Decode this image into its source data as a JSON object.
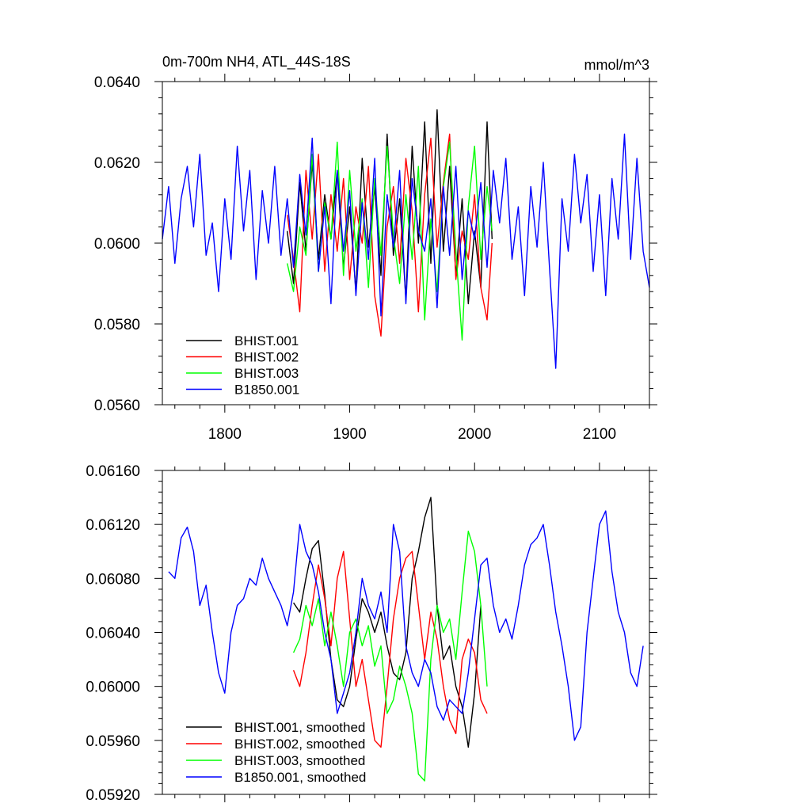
{
  "chart_data": [
    {
      "type": "line",
      "title": "0m-700m NH4, ATL_44S-18S",
      "units": "mmol/m^3",
      "xlim": [
        1750,
        2140
      ],
      "ylim": [
        0.056,
        0.064
      ],
      "x_ticks": [
        1800,
        1900,
        2000,
        2100
      ],
      "x_tick_labels": [
        "1800",
        "1900",
        "2000",
        "2100"
      ],
      "y_ticks": [
        0.056,
        0.058,
        0.06,
        0.062,
        0.064
      ],
      "y_tick_labels": [
        "0.0560",
        "0.0580",
        "0.0600",
        "0.0620",
        "0.0640"
      ],
      "legend_position": "bottom-left",
      "series": [
        {
          "name": "BHIST.001",
          "color": "#000000",
          "x": [
            1850,
            1855,
            1860,
            1865,
            1870,
            1875,
            1880,
            1885,
            1890,
            1895,
            1900,
            1905,
            1910,
            1915,
            1920,
            1925,
            1930,
            1935,
            1940,
            1945,
            1950,
            1955,
            1960,
            1965,
            1970,
            1975,
            1980,
            1985,
            1990,
            1995,
            2000,
            2005,
            2010,
            2014
          ],
          "y": [
            0.0603,
            0.059,
            0.0615,
            0.0598,
            0.062,
            0.0596,
            0.0612,
            0.0601,
            0.0618,
            0.0594,
            0.0609,
            0.0588,
            0.0621,
            0.0599,
            0.0614,
            0.0592,
            0.0627,
            0.0597,
            0.0611,
            0.0586,
            0.0624,
            0.06,
            0.063,
            0.0595,
            0.0633,
            0.0598,
            0.0619,
            0.0592,
            0.0611,
            0.0585,
            0.0603,
            0.0589,
            0.063,
            0.0601
          ]
        },
        {
          "name": "BHIST.002",
          "color": "#ff0000",
          "x": [
            1850,
            1855,
            1860,
            1865,
            1870,
            1875,
            1880,
            1885,
            1890,
            1895,
            1900,
            1905,
            1910,
            1915,
            1920,
            1925,
            1930,
            1935,
            1940,
            1945,
            1950,
            1955,
            1960,
            1965,
            1970,
            1975,
            1980,
            1985,
            1990,
            1995,
            2000,
            2005,
            2010,
            2014
          ],
          "y": [
            0.0607,
            0.0596,
            0.0583,
            0.0618,
            0.0601,
            0.0622,
            0.0593,
            0.0612,
            0.0598,
            0.0616,
            0.0591,
            0.0609,
            0.06,
            0.0619,
            0.0587,
            0.0577,
            0.0604,
            0.0614,
            0.0595,
            0.0621,
            0.0608,
            0.0583,
            0.0612,
            0.0626,
            0.0599,
            0.0615,
            0.0627,
            0.0591,
            0.0603,
            0.0596,
            0.0612,
            0.0589,
            0.0581,
            0.06
          ]
        },
        {
          "name": "BHIST.003",
          "color": "#00ff00",
          "x": [
            1850,
            1855,
            1860,
            1865,
            1870,
            1875,
            1880,
            1885,
            1890,
            1895,
            1900,
            1905,
            1910,
            1915,
            1920,
            1925,
            1930,
            1935,
            1940,
            1945,
            1950,
            1955,
            1960,
            1965,
            1970,
            1975,
            1980,
            1985,
            1990,
            1995,
            2000,
            2005,
            2010,
            2014
          ],
          "y": [
            0.0595,
            0.0588,
            0.0604,
            0.0597,
            0.0622,
            0.0593,
            0.061,
            0.0601,
            0.0625,
            0.0592,
            0.0618,
            0.0598,
            0.0611,
            0.0589,
            0.0616,
            0.0597,
            0.0624,
            0.0602,
            0.059,
            0.0612,
            0.0596,
            0.0619,
            0.0581,
            0.0606,
            0.0588,
            0.0614,
            0.0625,
            0.0598,
            0.0576,
            0.0609,
            0.0624,
            0.0596,
            0.0614,
            0.0603
          ]
        },
        {
          "name": "B1850.001",
          "color": "#0000ff",
          "x": [
            1750,
            1755,
            1760,
            1765,
            1770,
            1775,
            1780,
            1785,
            1790,
            1795,
            1800,
            1805,
            1810,
            1815,
            1820,
            1825,
            1830,
            1835,
            1840,
            1845,
            1850,
            1855,
            1860,
            1865,
            1870,
            1875,
            1880,
            1885,
            1890,
            1895,
            1900,
            1905,
            1910,
            1915,
            1920,
            1925,
            1930,
            1935,
            1940,
            1945,
            1950,
            1955,
            1960,
            1965,
            1970,
            1975,
            1980,
            1985,
            1990,
            1995,
            2000,
            2005,
            2010,
            2015,
            2020,
            2025,
            2030,
            2035,
            2040,
            2045,
            2050,
            2055,
            2060,
            2065,
            2070,
            2075,
            2080,
            2085,
            2090,
            2095,
            2100,
            2105,
            2110,
            2115,
            2120,
            2125,
            2130,
            2135,
            2140
          ],
          "y": [
            0.0601,
            0.0614,
            0.0595,
            0.0611,
            0.0619,
            0.0604,
            0.0622,
            0.0597,
            0.0605,
            0.0588,
            0.0611,
            0.0596,
            0.0624,
            0.0603,
            0.0618,
            0.0591,
            0.0613,
            0.06,
            0.0619,
            0.0597,
            0.0611,
            0.0594,
            0.0617,
            0.0602,
            0.0626,
            0.0593,
            0.0609,
            0.0585,
            0.0618,
            0.0598,
            0.0613,
            0.0587,
            0.061,
            0.0596,
            0.0621,
            0.0582,
            0.0612,
            0.0599,
            0.0618,
            0.0585,
            0.0616,
            0.0603,
            0.0598,
            0.0611,
            0.0584,
            0.0614,
            0.0597,
            0.0619,
            0.0591,
            0.0608,
            0.0601,
            0.0615,
            0.0594,
            0.0618,
            0.0605,
            0.0621,
            0.0596,
            0.0609,
            0.0587,
            0.0614,
            0.0599,
            0.062,
            0.0594,
            0.0569,
            0.0611,
            0.0598,
            0.0622,
            0.0605,
            0.0617,
            0.0593,
            0.0612,
            0.0587,
            0.0616,
            0.0601,
            0.0627,
            0.0596,
            0.0621,
            0.0598,
            0.0589
          ]
        }
      ]
    },
    {
      "type": "line",
      "xlim": [
        1750,
        2140
      ],
      "ylim": [
        0.0592,
        0.0616
      ],
      "x_ticks": [
        1800,
        1900,
        2000,
        2100
      ],
      "y_ticks": [
        0.0592,
        0.0596,
        0.06,
        0.0604,
        0.0608,
        0.0612,
        0.0616
      ],
      "y_tick_labels": [
        "0.05920",
        "0.05960",
        "0.06000",
        "0.06040",
        "0.06080",
        "0.06120",
        "0.06160"
      ],
      "legend_position": "bottom-left",
      "series": [
        {
          "name": "BHIST.001, smoothed",
          "color": "#000000",
          "x": [
            1855,
            1860,
            1865,
            1870,
            1875,
            1880,
            1885,
            1890,
            1895,
            1900,
            1905,
            1910,
            1915,
            1920,
            1925,
            1930,
            1935,
            1940,
            1945,
            1950,
            1955,
            1960,
            1965,
            1970,
            1975,
            1980,
            1985,
            1990,
            1995,
            2000,
            2005
          ],
          "y": [
            0.06062,
            0.06055,
            0.0608,
            0.06102,
            0.06108,
            0.06068,
            0.0602,
            0.0599,
            0.05985,
            0.06,
            0.06035,
            0.06065,
            0.06055,
            0.0604,
            0.06055,
            0.0603,
            0.0601,
            0.06005,
            0.06025,
            0.0608,
            0.061,
            0.06125,
            0.0614,
            0.0606,
            0.0602,
            0.0603,
            0.06,
            0.05985,
            0.05955,
            0.05995,
            0.0606
          ]
        },
        {
          "name": "BHIST.002, smoothed",
          "color": "#ff0000",
          "x": [
            1855,
            1860,
            1865,
            1870,
            1875,
            1880,
            1885,
            1890,
            1895,
            1900,
            1905,
            1910,
            1915,
            1920,
            1925,
            1930,
            1935,
            1940,
            1945,
            1950,
            1955,
            1960,
            1965,
            1970,
            1975,
            1980,
            1985,
            1990,
            1995,
            2000,
            2005,
            2010
          ],
          "y": [
            0.06012,
            0.06,
            0.06025,
            0.0606,
            0.0609,
            0.06065,
            0.0603,
            0.0608,
            0.061,
            0.0605,
            0.06,
            0.0602,
            0.0599,
            0.0596,
            0.05955,
            0.06,
            0.0605,
            0.0608,
            0.06095,
            0.061,
            0.0606,
            0.0602,
            0.06055,
            0.06035,
            0.06,
            0.05975,
            0.05965,
            0.0602,
            0.06035,
            0.06025,
            0.0599,
            0.0598
          ]
        },
        {
          "name": "BHIST.003, smoothed",
          "color": "#00ff00",
          "x": [
            1855,
            1860,
            1865,
            1870,
            1875,
            1880,
            1885,
            1890,
            1895,
            1900,
            1905,
            1910,
            1915,
            1920,
            1925,
            1930,
            1935,
            1940,
            1945,
            1950,
            1955,
            1960,
            1965,
            1970,
            1975,
            1980,
            1985,
            1990,
            1995,
            2000,
            2005,
            2010
          ],
          "y": [
            0.06025,
            0.06035,
            0.0606,
            0.06045,
            0.06065,
            0.0603,
            0.06055,
            0.0603,
            0.06,
            0.0604,
            0.0605,
            0.0603,
            0.06045,
            0.06015,
            0.0603,
            0.0598,
            0.0599,
            0.06015,
            0.06,
            0.0598,
            0.05935,
            0.0593,
            0.0602,
            0.0606,
            0.0604,
            0.0605,
            0.0602,
            0.0607,
            0.06115,
            0.061,
            0.0606,
            0.06
          ]
        },
        {
          "name": "B1850.001, smoothed",
          "color": "#0000ff",
          "x": [
            1755,
            1760,
            1765,
            1770,
            1775,
            1780,
            1785,
            1790,
            1795,
            1800,
            1805,
            1810,
            1815,
            1820,
            1825,
            1830,
            1835,
            1840,
            1845,
            1850,
            1855,
            1860,
            1865,
            1870,
            1875,
            1880,
            1885,
            1890,
            1895,
            1900,
            1905,
            1910,
            1915,
            1920,
            1925,
            1930,
            1935,
            1940,
            1945,
            1950,
            1955,
            1960,
            1965,
            1970,
            1975,
            1980,
            1985,
            1990,
            1995,
            2000,
            2005,
            2010,
            2015,
            2020,
            2025,
            2030,
            2035,
            2040,
            2045,
            2050,
            2055,
            2060,
            2065,
            2070,
            2075,
            2080,
            2085,
            2090,
            2095,
            2100,
            2105,
            2110,
            2115,
            2120,
            2125,
            2130,
            2135
          ],
          "y": [
            0.06085,
            0.0608,
            0.0611,
            0.06118,
            0.061,
            0.0606,
            0.06075,
            0.0604,
            0.0601,
            0.05995,
            0.0604,
            0.0606,
            0.06065,
            0.0608,
            0.06075,
            0.06095,
            0.0608,
            0.0607,
            0.0606,
            0.06045,
            0.0607,
            0.0612,
            0.061,
            0.0609,
            0.0607,
            0.0604,
            0.0602,
            0.0598,
            0.05995,
            0.0601,
            0.0604,
            0.0608,
            0.0606,
            0.0605,
            0.0607,
            0.0604,
            0.0612,
            0.061,
            0.0603,
            0.0601,
            0.06,
            0.0602,
            0.0601,
            0.05985,
            0.05975,
            0.0599,
            0.05985,
            0.0598,
            0.0601,
            0.0605,
            0.0609,
            0.06095,
            0.0606,
            0.0604,
            0.0605,
            0.06035,
            0.0606,
            0.0609,
            0.06105,
            0.0611,
            0.0612,
            0.0609,
            0.06055,
            0.0603,
            0.06,
            0.0596,
            0.0597,
            0.0604,
            0.0608,
            0.0612,
            0.0613,
            0.06085,
            0.06055,
            0.0604,
            0.0601,
            0.06,
            0.0603
          ]
        }
      ]
    }
  ]
}
